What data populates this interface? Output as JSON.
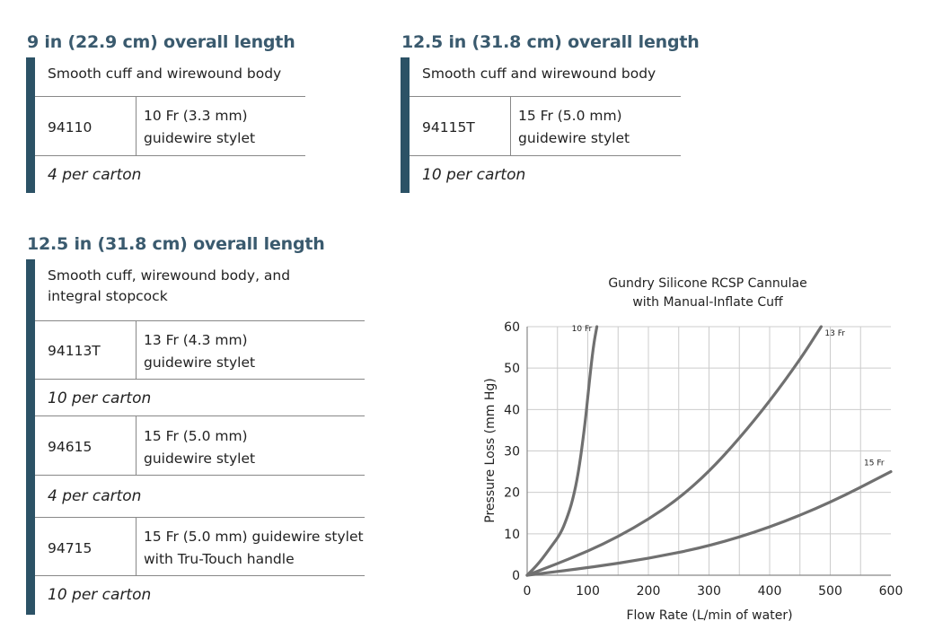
{
  "section1": {
    "heading": "9 in (22.9 cm) overall length",
    "subtitle": "Smooth cuff and wirewound body",
    "code": "94110",
    "desc1": "10 Fr (3.3 mm)",
    "desc2": "guidewire stylet",
    "carton": "4 per carton"
  },
  "section2": {
    "heading": "12.5 in (31.8 cm) overall length",
    "subtitle": "Smooth cuff and wirewound body",
    "code": "94115T",
    "desc1": "15 Fr (5.0 mm)",
    "desc2": "guidewire stylet",
    "carton": "10 per carton"
  },
  "section3": {
    "heading": "12.5 in (31.8 cm) overall length",
    "subtitle1": "Smooth cuff, wirewound body, and",
    "subtitle2": "integral stopcock",
    "rows": [
      {
        "code": "94113T",
        "desc1": "13 Fr (4.3 mm)",
        "desc2": "guidewire stylet",
        "carton": "10 per carton"
      },
      {
        "code": "94615",
        "desc1": "15 Fr (5.0 mm)",
        "desc2": "guidewire stylet",
        "carton": "4 per carton"
      },
      {
        "code": "94715",
        "desc1": "15 Fr (5.0 mm) guidewire stylet",
        "desc2": "with Tru-Touch handle",
        "carton": "10 per carton"
      }
    ]
  },
  "chart_data": {
    "type": "line",
    "title_line1": "Gundry Silicone RCSP Cannulae",
    "title_line2": "with Manual-Inflate Cuff",
    "xlabel": "Flow Rate (L/min of water)",
    "ylabel": "Pressure Loss (mm Hg)",
    "xlim": [
      0,
      600
    ],
    "ylim": [
      0,
      60
    ],
    "xticks": [
      0,
      100,
      200,
      300,
      400,
      500,
      600
    ],
    "yticks": [
      0,
      10,
      20,
      30,
      40,
      50,
      60
    ],
    "grid": true,
    "series": [
      {
        "name": "10 Fr",
        "x": [
          0,
          20,
          40,
          55,
          65,
          75,
          85,
          95,
          100,
          105,
          110,
          115
        ],
        "y": [
          0,
          3,
          7,
          10,
          13.5,
          18,
          25,
          36,
          43,
          50,
          56,
          60
        ]
      },
      {
        "name": "13 Fr",
        "x": [
          0,
          50,
          100,
          150,
          200,
          250,
          300,
          350,
          400,
          450,
          485
        ],
        "y": [
          0,
          2.8,
          5.8,
          9.3,
          13.5,
          18.5,
          25,
          33,
          42,
          52,
          60
        ]
      },
      {
        "name": "15 Fr",
        "x": [
          0,
          100,
          200,
          300,
          400,
          500,
          600
        ],
        "y": [
          0,
          1.8,
          4,
          7,
          11.5,
          17.5,
          25
        ]
      }
    ],
    "line_color": "#707070"
  }
}
